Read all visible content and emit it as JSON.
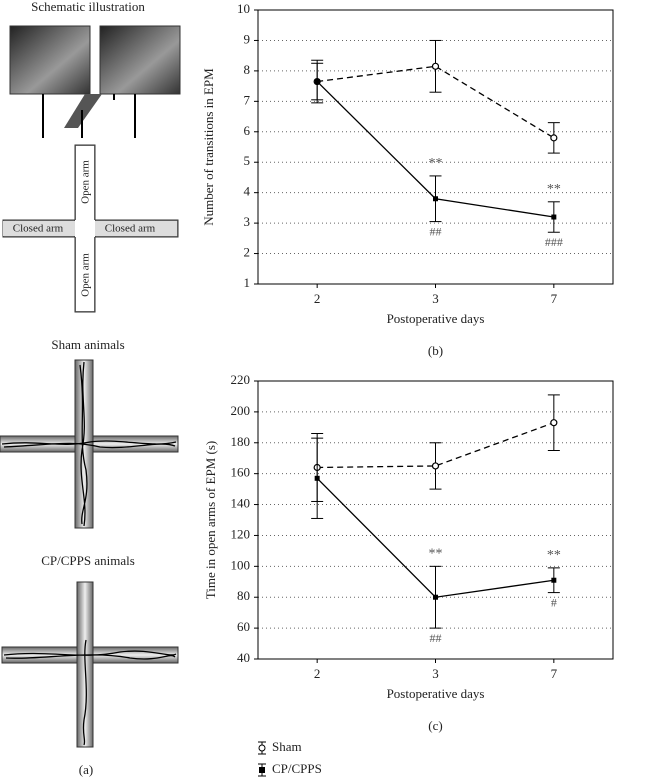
{
  "panel_a": {
    "title": "Schematic illustration",
    "open_arm": "Open arm",
    "closed_arm": "Closed arm",
    "sham_title": "Sham animals",
    "cp_title": "CP/CPPS animals",
    "caption": "(a)"
  },
  "chart_data": [
    {
      "type": "line",
      "caption": "(b)",
      "x_label": "Postoperative days",
      "y_label": "Number of transitions in EPM",
      "categories": [
        "2",
        "3",
        "7"
      ],
      "ylim": [
        1,
        10
      ],
      "yticks": [
        1,
        2,
        3,
        4,
        5,
        6,
        7,
        8,
        9,
        10
      ],
      "grid": true,
      "series": [
        {
          "name": "Sham",
          "color": "#000000",
          "line_style": "dashed",
          "marker": "open-circle",
          "values": [
            7.65,
            8.15,
            5.8
          ],
          "errors": [
            0.6,
            0.85,
            0.5
          ],
          "labels_above": [
            null,
            null,
            null
          ],
          "labels_below": [
            null,
            null,
            null
          ]
        },
        {
          "name": "CP/CPPS",
          "color": "#000000",
          "line_style": "solid",
          "marker": "filled-square",
          "values": [
            7.65,
            3.8,
            3.2
          ],
          "errors": [
            0.7,
            0.75,
            0.5
          ],
          "labels_above": [
            null,
            "**",
            "**"
          ],
          "labels_below": [
            null,
            "##",
            "###"
          ]
        }
      ]
    },
    {
      "type": "line",
      "caption": "(c)",
      "x_label": "Postoperative days",
      "y_label": "Time in open arms of EPM (s)",
      "categories": [
        "2",
        "3",
        "7"
      ],
      "ylim": [
        40,
        220
      ],
      "yticks": [
        40,
        60,
        80,
        100,
        120,
        140,
        160,
        180,
        200,
        220
      ],
      "grid": true,
      "series": [
        {
          "color": "#000000",
          "line_style": "dashed",
          "marker": "open-circle",
          "values": [
            164,
            165,
            193
          ],
          "errors": [
            22,
            15,
            18
          ],
          "labels_above": [
            null,
            null,
            null
          ],
          "labels_below": [
            null,
            null,
            null
          ]
        },
        {
          "color": "#000000",
          "line_style": "solid",
          "marker": "filled-square",
          "values": [
            157,
            80,
            91
          ],
          "errors": [
            26,
            20,
            8
          ],
          "labels_above": [
            null,
            "**",
            "**"
          ],
          "labels_below": [
            null,
            "##",
            "#"
          ]
        }
      ]
    }
  ]
}
